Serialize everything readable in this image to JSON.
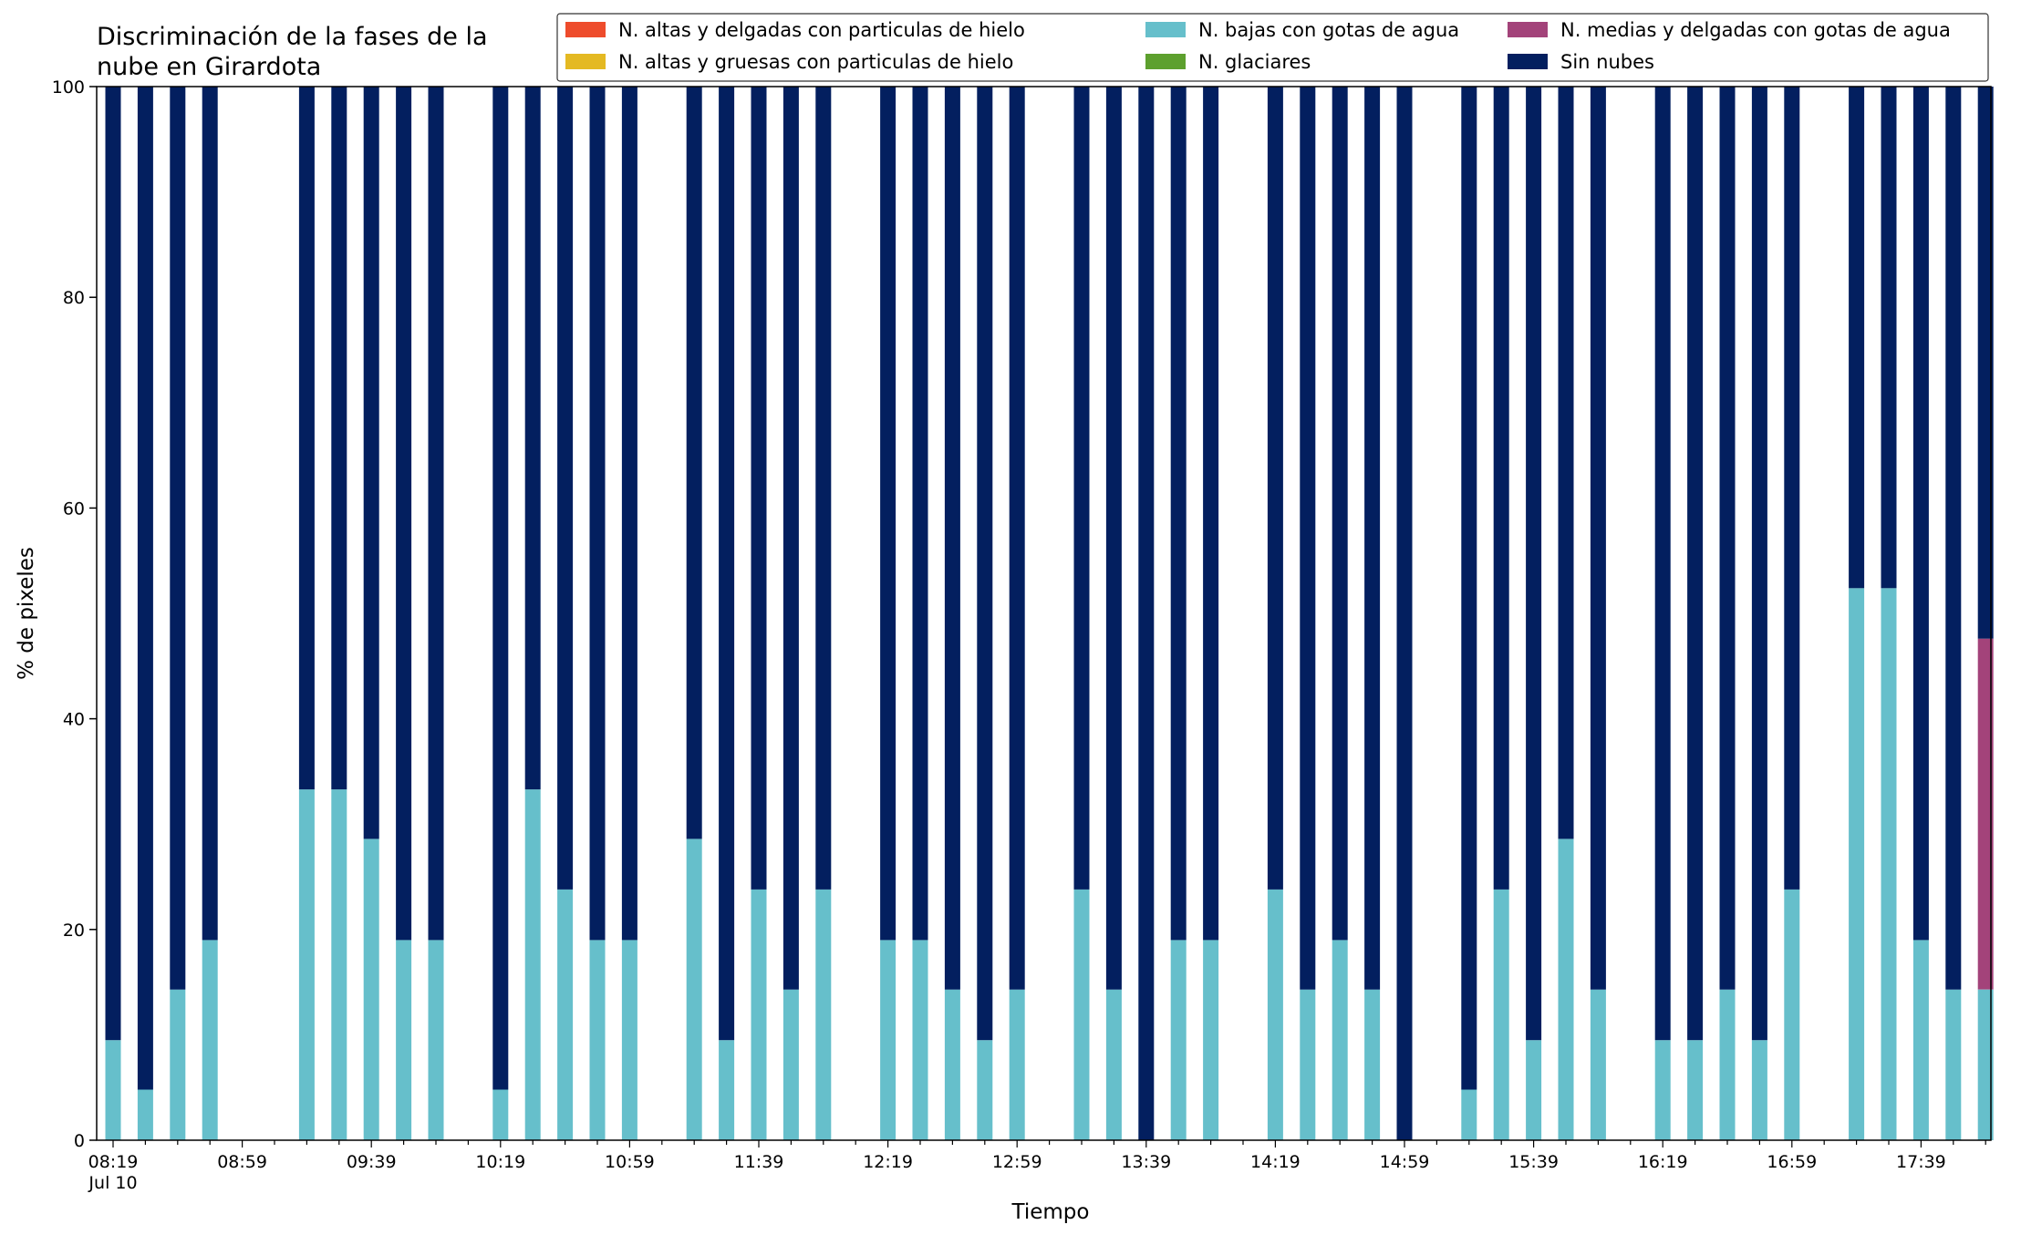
{
  "chart_data": {
    "type": "bar",
    "stacked": true,
    "title": "Discriminación de la fases de la nube en Girardota",
    "title_lines": [
      "Discriminación de la fases de la",
      "nube en Girardota"
    ],
    "xlabel": "Tiempo",
    "ylabel": "% de pixeles",
    "ylim": [
      0,
      100
    ],
    "yticks": [
      0,
      20,
      40,
      60,
      80,
      100
    ],
    "x_start": "08:19",
    "x_end": "17:59",
    "x_step_minutes": 10,
    "xticks": [
      "08:19",
      "08:59",
      "09:39",
      "10:19",
      "10:59",
      "11:39",
      "12:19",
      "12:59",
      "13:39",
      "14:19",
      "14:59",
      "15:39",
      "16:19",
      "16:59",
      "17:39"
    ],
    "x_date_label": "Jul 10",
    "legend_position": "top-right",
    "legend_columns": 3,
    "series": [
      {
        "name": "N. altas y delgadas con particulas de hielo",
        "color": "#ee4c2c",
        "values": [
          0,
          0,
          0,
          0,
          null,
          null,
          0,
          0,
          0,
          0,
          0,
          null,
          0,
          0,
          0,
          0,
          0,
          null,
          0,
          0,
          0,
          0,
          0,
          null,
          0,
          0,
          0,
          0,
          0,
          null,
          0,
          0,
          0,
          0,
          0,
          null,
          0,
          0,
          0,
          0,
          0,
          null,
          0,
          0,
          0,
          0,
          0,
          null,
          0,
          0,
          0,
          0,
          0,
          null,
          0,
          0,
          0,
          0,
          0
        ]
      },
      {
        "name": "N. altas y gruesas con particulas de hielo",
        "color": "#e4b922",
        "values": [
          0,
          0,
          0,
          0,
          null,
          null,
          0,
          0,
          0,
          0,
          0,
          null,
          0,
          0,
          0,
          0,
          0,
          null,
          0,
          0,
          0,
          0,
          0,
          null,
          0,
          0,
          0,
          0,
          0,
          null,
          0,
          0,
          0,
          0,
          0,
          null,
          0,
          0,
          0,
          0,
          0,
          null,
          0,
          0,
          0,
          0,
          0,
          null,
          0,
          0,
          0,
          0,
          0,
          null,
          0,
          0,
          0,
          0,
          0
        ]
      },
      {
        "name": "N. bajas con gotas de agua",
        "color": "#66bfcb",
        "values": [
          9.5,
          4.8,
          14.3,
          19,
          null,
          null,
          33.3,
          33.3,
          28.6,
          19,
          19,
          null,
          4.8,
          33.3,
          23.8,
          19,
          19,
          null,
          28.6,
          9.5,
          23.8,
          14.3,
          23.8,
          null,
          19,
          19,
          14.3,
          9.5,
          14.3,
          null,
          23.8,
          14.3,
          0,
          19,
          19,
          null,
          23.8,
          14.3,
          19,
          14.3,
          0,
          null,
          4.8,
          23.8,
          9.5,
          28.6,
          14.3,
          null,
          9.5,
          9.5,
          14.3,
          9.5,
          23.8,
          null,
          52.4,
          52.4,
          19,
          14.3,
          14.3
        ]
      },
      {
        "name": "N. glaciares",
        "color": "#5da02e",
        "values": [
          0,
          0,
          0,
          0,
          null,
          null,
          0,
          0,
          0,
          0,
          0,
          null,
          0,
          0,
          0,
          0,
          0,
          null,
          0,
          0,
          0,
          0,
          0,
          null,
          0,
          0,
          0,
          0,
          0,
          null,
          0,
          0,
          0,
          0,
          0,
          null,
          0,
          0,
          0,
          0,
          0,
          null,
          0,
          0,
          0,
          0,
          0,
          null,
          0,
          0,
          0,
          0,
          0,
          null,
          0,
          0,
          0,
          0,
          0
        ]
      },
      {
        "name": "N. medias y delgadas con gotas de agua",
        "color": "#a3437a",
        "values": [
          0,
          0,
          0,
          0,
          null,
          null,
          0,
          0,
          0,
          0,
          0,
          null,
          0,
          0,
          0,
          0,
          0,
          null,
          0,
          0,
          0,
          0,
          0,
          null,
          0,
          0,
          0,
          0,
          0,
          null,
          0,
          0,
          0,
          0,
          0,
          null,
          0,
          0,
          0,
          0,
          0,
          null,
          0,
          0,
          0,
          0,
          0,
          null,
          0,
          0,
          0,
          0,
          0,
          null,
          0,
          0,
          0,
          0,
          33.3
        ]
      },
      {
        "name": "Sin nubes",
        "color": "#031f5f",
        "values": [
          90.5,
          95.2,
          85.7,
          81,
          null,
          null,
          66.7,
          66.7,
          71.4,
          81,
          81,
          null,
          95.2,
          66.7,
          76.2,
          81,
          81,
          null,
          71.4,
          90.5,
          76.2,
          85.7,
          76.2,
          null,
          81,
          81,
          85.7,
          90.5,
          85.7,
          null,
          76.2,
          85.7,
          100,
          81,
          81,
          null,
          76.2,
          85.7,
          81,
          85.7,
          100,
          null,
          95.2,
          76.2,
          90.5,
          71.4,
          85.7,
          null,
          90.5,
          90.5,
          85.7,
          90.5,
          76.2,
          null,
          47.6,
          47.6,
          81,
          85.7,
          52.4
        ]
      }
    ]
  }
}
